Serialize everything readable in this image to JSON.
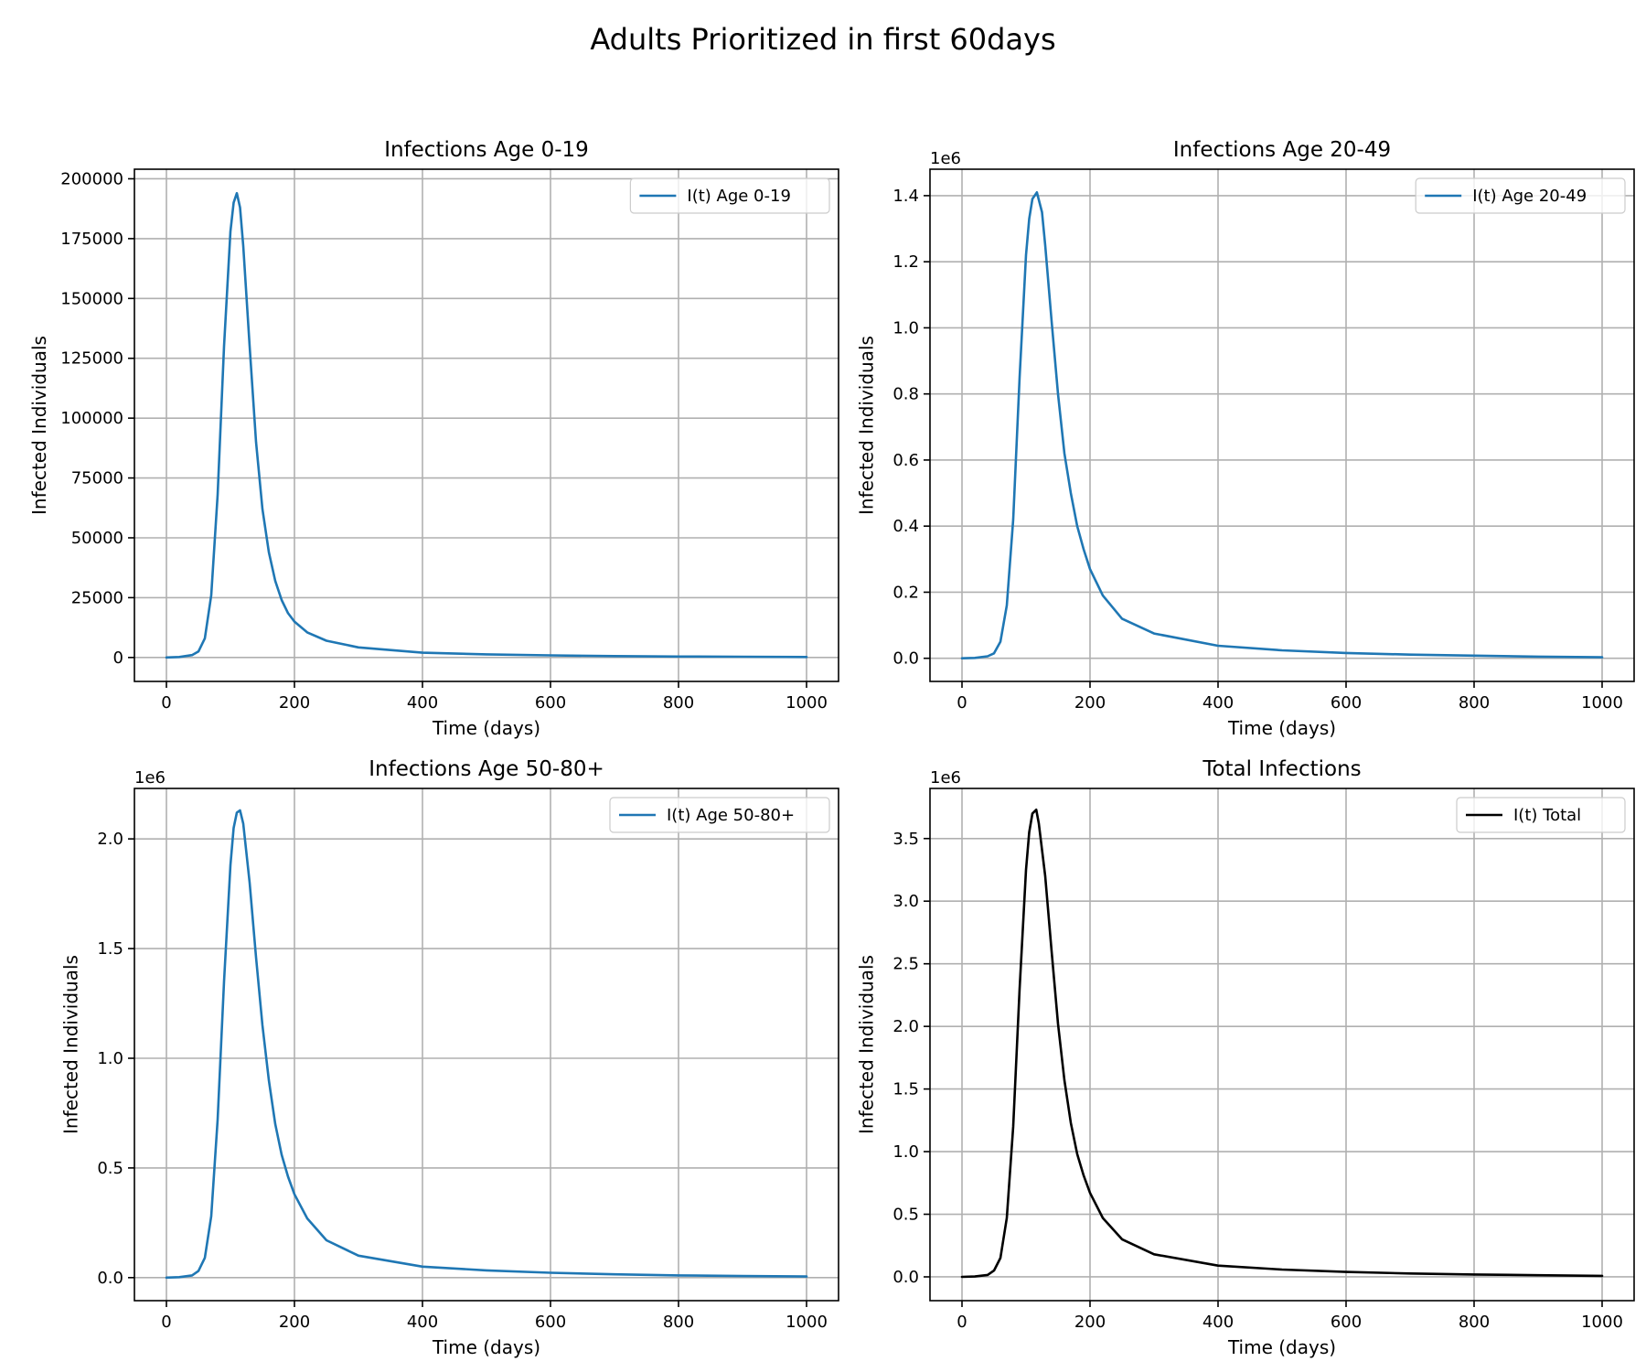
{
  "figure": {
    "title": "Adults Prioritized in first 60days"
  },
  "chart_data": [
    {
      "type": "line",
      "title": "Infections Age 0-19",
      "xlabel": "Time (days)",
      "ylabel": "Infected Individuals",
      "xlim": [
        -50,
        1050
      ],
      "ylim": [
        -10000,
        204000
      ],
      "xticks": [
        0,
        200,
        400,
        600,
        800,
        1000
      ],
      "xtick_labels": [
        "0",
        "200",
        "400",
        "600",
        "800",
        "1000"
      ],
      "yticks": [
        0,
        25000,
        50000,
        75000,
        100000,
        125000,
        150000,
        175000,
        200000
      ],
      "ytick_labels": [
        "0",
        "25000",
        "50000",
        "75000",
        "100000",
        "125000",
        "150000",
        "175000",
        "200000"
      ],
      "offset_label": "",
      "grid": true,
      "legend": "top-right",
      "series": [
        {
          "name": "I(t) Age 0-19",
          "color": "#1f77b4",
          "x": [
            0,
            20,
            40,
            50,
            60,
            70,
            80,
            90,
            100,
            105,
            110,
            115,
            120,
            130,
            140,
            150,
            160,
            170,
            180,
            190,
            200,
            220,
            250,
            300,
            400,
            500,
            600,
            700,
            800,
            900,
            1000
          ],
          "y": [
            0,
            200,
            1000,
            2500,
            8000,
            26000,
            68000,
            130000,
            178000,
            190000,
            194000,
            188000,
            172000,
            130000,
            90000,
            62000,
            44000,
            32000,
            24000,
            18500,
            15000,
            10500,
            7000,
            4200,
            2000,
            1300,
            900,
            600,
            400,
            300,
            200
          ]
        }
      ]
    },
    {
      "type": "line",
      "title": "Infections Age 20-49",
      "xlabel": "Time (days)",
      "ylabel": "Infected Individuals",
      "xlim": [
        -50,
        1050
      ],
      "ylim": [
        -0.07,
        1.48
      ],
      "xticks": [
        0,
        200,
        400,
        600,
        800,
        1000
      ],
      "xtick_labels": [
        "0",
        "200",
        "400",
        "600",
        "800",
        "1000"
      ],
      "yticks": [
        0.0,
        0.2,
        0.4,
        0.6,
        0.8,
        1.0,
        1.2,
        1.4
      ],
      "ytick_labels": [
        "0.0",
        "0.2",
        "0.4",
        "0.6",
        "0.8",
        "1.0",
        "1.2",
        "1.4"
      ],
      "offset_label": "1e6",
      "grid": true,
      "legend": "top-right",
      "series": [
        {
          "name": "I(t) Age 20-49",
          "color": "#1f77b4",
          "x": [
            0,
            20,
            40,
            50,
            60,
            70,
            80,
            90,
            100,
            105,
            110,
            117,
            125,
            130,
            140,
            150,
            160,
            170,
            180,
            190,
            200,
            220,
            250,
            300,
            400,
            500,
            600,
            700,
            800,
            900,
            1000
          ],
          "y": [
            0,
            0.001,
            0.006,
            0.015,
            0.05,
            0.16,
            0.42,
            0.85,
            1.22,
            1.33,
            1.39,
            1.41,
            1.35,
            1.25,
            1.02,
            0.8,
            0.62,
            0.5,
            0.4,
            0.33,
            0.27,
            0.19,
            0.12,
            0.075,
            0.038,
            0.024,
            0.016,
            0.011,
            0.008,
            0.005,
            0.003
          ]
        }
      ]
    },
    {
      "type": "line",
      "title": "Infections Age 50-80+",
      "xlabel": "Time (days)",
      "ylabel": "Infected Individuals",
      "xlim": [
        -50,
        1050
      ],
      "ylim": [
        -0.105,
        2.23
      ],
      "xticks": [
        0,
        200,
        400,
        600,
        800,
        1000
      ],
      "xtick_labels": [
        "0",
        "200",
        "400",
        "600",
        "800",
        "1000"
      ],
      "yticks": [
        0.0,
        0.5,
        1.0,
        1.5,
        2.0
      ],
      "ytick_labels": [
        "0.0",
        "0.5",
        "1.0",
        "1.5",
        "2.0"
      ],
      "offset_label": "1e6",
      "grid": true,
      "legend": "top-right",
      "series": [
        {
          "name": "I(t) Age 50-80+",
          "color": "#1f77b4",
          "x": [
            0,
            20,
            40,
            50,
            60,
            70,
            80,
            90,
            100,
            105,
            110,
            115,
            120,
            130,
            140,
            150,
            160,
            170,
            180,
            190,
            200,
            220,
            250,
            300,
            400,
            500,
            600,
            700,
            800,
            900,
            1000
          ],
          "y": [
            0,
            0.002,
            0.01,
            0.03,
            0.09,
            0.28,
            0.72,
            1.35,
            1.88,
            2.05,
            2.12,
            2.13,
            2.07,
            1.8,
            1.46,
            1.15,
            0.9,
            0.7,
            0.56,
            0.46,
            0.38,
            0.27,
            0.17,
            0.1,
            0.05,
            0.033,
            0.022,
            0.015,
            0.01,
            0.007,
            0.005
          ]
        }
      ]
    },
    {
      "type": "line",
      "title": "Total Infections",
      "xlabel": "Time (days)",
      "ylabel": "Infected Individuals",
      "xlim": [
        -50,
        1050
      ],
      "ylim": [
        -0.19,
        3.9
      ],
      "xticks": [
        0,
        200,
        400,
        600,
        800,
        1000
      ],
      "xtick_labels": [
        "0",
        "200",
        "400",
        "600",
        "800",
        "1000"
      ],
      "yticks": [
        0.0,
        0.5,
        1.0,
        1.5,
        2.0,
        2.5,
        3.0,
        3.5
      ],
      "ytick_labels": [
        "0.0",
        "0.5",
        "1.0",
        "1.5",
        "2.0",
        "2.5",
        "3.0",
        "3.5"
      ],
      "offset_label": "1e6",
      "grid": true,
      "legend": "top-right",
      "series": [
        {
          "name": "I(t) Total",
          "color": "#000000",
          "x": [
            0,
            20,
            40,
            50,
            60,
            70,
            80,
            90,
            100,
            105,
            110,
            116,
            120,
            130,
            140,
            150,
            160,
            170,
            180,
            190,
            200,
            220,
            250,
            300,
            400,
            500,
            600,
            700,
            800,
            900,
            1000
          ],
          "y": [
            0,
            0.003,
            0.015,
            0.05,
            0.15,
            0.47,
            1.2,
            2.3,
            3.25,
            3.55,
            3.7,
            3.73,
            3.62,
            3.2,
            2.6,
            2.02,
            1.57,
            1.23,
            0.98,
            0.81,
            0.67,
            0.47,
            0.3,
            0.18,
            0.09,
            0.058,
            0.039,
            0.027,
            0.019,
            0.013,
            0.008
          ]
        }
      ]
    }
  ]
}
